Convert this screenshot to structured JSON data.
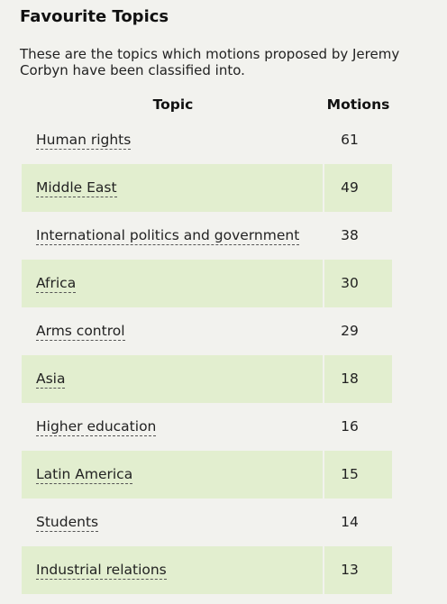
{
  "section": {
    "title": "Favourite Topics",
    "description": "These are the topics which motions proposed by Jeremy Corbyn have been classified into."
  },
  "table": {
    "headers": {
      "topic": "Topic",
      "motions": "Motions"
    },
    "rows": [
      {
        "topic": "Human rights",
        "motions": "61"
      },
      {
        "topic": "Middle East",
        "motions": "49"
      },
      {
        "topic": "International politics and government",
        "motions": "38"
      },
      {
        "topic": "Africa",
        "motions": "30"
      },
      {
        "topic": "Arms control",
        "motions": "29"
      },
      {
        "topic": "Asia",
        "motions": "18"
      },
      {
        "topic": "Higher education",
        "motions": "16"
      },
      {
        "topic": "Latin America",
        "motions": "15"
      },
      {
        "topic": "Students",
        "motions": "14"
      },
      {
        "topic": "Industrial relations",
        "motions": "13"
      }
    ]
  },
  "colors": {
    "background": "#f2f2ee",
    "alt_row": "#e2eecf"
  }
}
